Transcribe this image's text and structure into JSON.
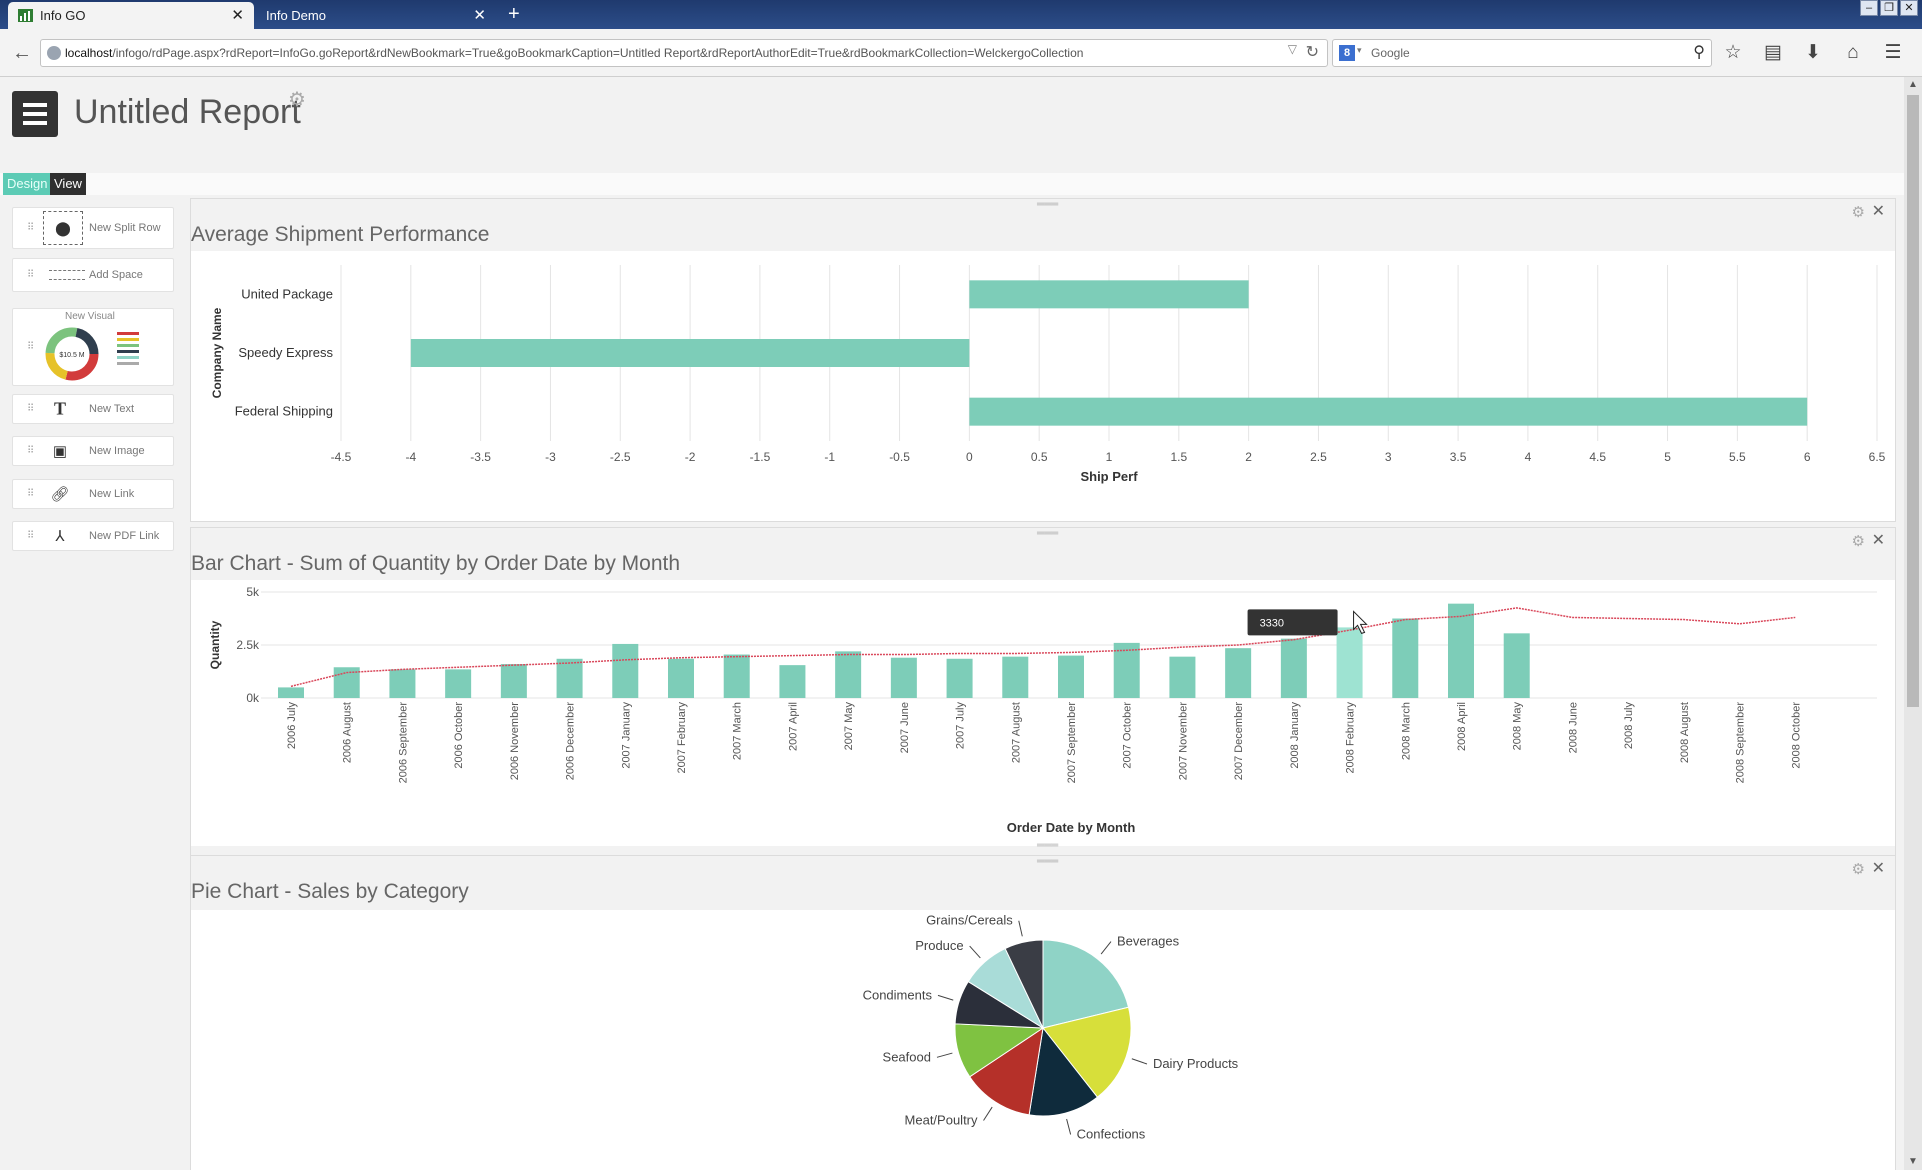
{
  "browser": {
    "tabs": [
      {
        "label": "Info GO",
        "active": true
      },
      {
        "label": "Info Demo",
        "active": false
      }
    ],
    "url_host": "localhost",
    "url_rest": "/infogo/rdPage.aspx?rdReport=InfoGo.goReport&rdNewBookmark=True&goBookmarkCaption=Untitled Report&rdReportAuthorEdit=True&rdBookmarkCollection=WelckergoCollection",
    "search_placeholder": "Google",
    "search_engine_letter": "8"
  },
  "header": {
    "title": "Untitled Report"
  },
  "modes": {
    "design": "Design",
    "view": "View"
  },
  "palette": {
    "items": [
      {
        "label": "New Split Row",
        "icon": "split-row-icon"
      },
      {
        "label": "Add Space",
        "icon": "space-icon"
      },
      {
        "label": "New Visual",
        "icon": "visual-icon"
      },
      {
        "label": "New Text",
        "icon": "text-icon"
      },
      {
        "label": "New Image",
        "icon": "image-icon"
      },
      {
        "label": "New Link",
        "icon": "link-icon"
      },
      {
        "label": "New PDF Link",
        "icon": "pdf-icon"
      }
    ],
    "visual_preview_value": "$10.5 M"
  },
  "colors": {
    "accent": "#7dcdb8",
    "accent_hover": "#9ee3d2",
    "trend_line": "#d9475a",
    "design_tab": "#5ccbb5",
    "view_tab": "#2f2f2f"
  },
  "charts": {
    "shipment": {
      "title": "Average Shipment Performance",
      "xlabel": "Ship Perf",
      "ylabel": "Company Name"
    },
    "quantity": {
      "title": "Bar Chart - Sum of Quantity by Order Date by Month",
      "xlabel": "Order Date by Month",
      "ylabel": "Quantity",
      "tooltip": "3330"
    },
    "sales": {
      "title": "Pie Chart - Sales by Category"
    }
  },
  "chart_data": [
    {
      "type": "bar",
      "orientation": "horizontal",
      "title": "Average Shipment Performance",
      "xlabel": "Ship Perf",
      "ylabel": "Company Name",
      "categories": [
        "United Package",
        "Speedy Express",
        "Federal Shipping"
      ],
      "values": [
        2,
        -4,
        6
      ],
      "xlim": [
        -4.5,
        6.5
      ],
      "xticks": [
        "-4.5",
        "-4",
        "-3.5",
        "-3",
        "-2.5",
        "-2",
        "-1.5",
        "-1",
        "-0.5",
        "0",
        "0.5",
        "1",
        "1.5",
        "2",
        "2.5",
        "3",
        "3.5",
        "4",
        "4.5",
        "5",
        "5.5",
        "6",
        "6.5"
      ],
      "grid": true
    },
    {
      "type": "bar",
      "title": "Bar Chart - Sum of Quantity by Order Date by Month",
      "xlabel": "Order Date by Month",
      "ylabel": "Quantity",
      "categories": [
        "2006 July",
        "2006 August",
        "2006 September",
        "2006 October",
        "2006 November",
        "2006 December",
        "2007 January",
        "2007 February",
        "2007 March",
        "2007 April",
        "2007 May",
        "2007 June",
        "2007 July",
        "2007 August",
        "2007 September",
        "2007 October",
        "2007 November",
        "2007 December",
        "2008 January",
        "2008 February",
        "2008 March",
        "2008 April",
        "2008 May",
        "2008 June",
        "2008 July",
        "2008 August",
        "2008 September",
        "2008 October"
      ],
      "series": [
        {
          "values": [
            500,
            1450,
            1350,
            1350,
            1600,
            1850,
            2550,
            1850,
            2050,
            1550,
            2200,
            1900,
            1850,
            1950,
            2000,
            2600,
            1950,
            2350,
            2800,
            3330,
            3750,
            4450,
            3050,
            null,
            null,
            null,
            null,
            null
          ]
        },
        {
          "type": "line",
          "values": [
            550,
            1200,
            1350,
            1450,
            1550,
            1650,
            1800,
            1900,
            1950,
            2000,
            2050,
            2050,
            2100,
            2100,
            2150,
            2250,
            2400,
            2500,
            2750,
            3200,
            3700,
            3850,
            4250,
            3800,
            3750,
            3700,
            3500,
            3800
          ]
        }
      ],
      "ylim": [
        0,
        5000
      ],
      "yticks": [
        "0k",
        "2.5k",
        "5k"
      ],
      "grid": true
    },
    {
      "type": "pie",
      "title": "Pie Chart - Sales by Category",
      "categories": [
        "Beverages",
        "Dairy Products",
        "Confections",
        "Meat/Poultry",
        "Seafood",
        "Condiments",
        "Produce",
        "Grains/Cereals"
      ],
      "values": [
        21,
        18,
        13,
        13,
        10,
        8,
        9,
        7
      ],
      "colors": [
        "#8fd3c6",
        "#d7df3a",
        "#0f2b3c",
        "#b53029",
        "#7fc241",
        "#2b2f3a",
        "#a9dcd8",
        "#3a3d45"
      ]
    }
  ]
}
